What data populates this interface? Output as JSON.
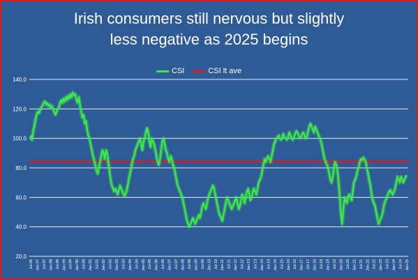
{
  "chart_data": {
    "type": "line",
    "title": "Irish consumers still nervous but slightly less negative as 2025 begins",
    "title_lines": [
      "Irish consumers still nervous but slightly",
      "less negative as 2025 begins"
    ],
    "ylim": [
      20,
      140
    ],
    "y_ticks": [
      "20.0",
      "40.0",
      "60.0",
      "80.0",
      "100.0",
      "120.0",
      "140.0"
    ],
    "x_tick_labels": [
      "Jul-96",
      "Jan-97",
      "Jul-97",
      "Jan-98",
      "Jul-98",
      "Jan-99",
      "Jul-99",
      "Jan-00",
      "Jul-00",
      "Jan-01",
      "Jul-01",
      "Jan-02",
      "Jul-02",
      "Jan-03",
      "Jul-03",
      "Jan-04",
      "Jul-04",
      "Jan-05",
      "Jul-05",
      "Jan-06",
      "Jul-06",
      "Jan-07",
      "Jul-07",
      "Jan-08",
      "Jul-08",
      "Jan-09",
      "Jul-09",
      "Jan-10",
      "Jul-10",
      "Jan-11",
      "Jul-11",
      "Jan-12",
      "Jul-12",
      "Jan-13",
      "Jul-13",
      "Jan-14",
      "Jul-14",
      "Jan-15",
      "Jul-15",
      "Jan-16",
      "Jul-16",
      "Jan-17",
      "Jul-17",
      "Jan-18",
      "Jul-18",
      "Jan-19",
      "Jul-19",
      "Jan-20",
      "Jul-20",
      "Jan-21",
      "Jul-21",
      "Jan-22",
      "Jul-22",
      "Jan-23",
      "Jul-23",
      "Jan-24",
      "Jul-24",
      "Jan-25"
    ],
    "legend": [
      "CSI",
      "CSI lt ave"
    ],
    "legend_position": "top",
    "grid": true,
    "colors": {
      "csi": "#3ee84a",
      "lt_ave": "#d81b1b",
      "background": "#2e5a96",
      "border": "#e01818",
      "grid": "#ffffff",
      "text": "#ffffff"
    },
    "series": [
      {
        "name": "CSI",
        "x_start": "Jul-96",
        "frequency": "monthly",
        "values": [
          102,
          99,
          104,
          108,
          112,
          116,
          118,
          117,
          119,
          121,
          122,
          124,
          125,
          123,
          124,
          122,
          123,
          121,
          122,
          120,
          118,
          116,
          118,
          120,
          121,
          124,
          126,
          124,
          127,
          125,
          128,
          126,
          129,
          127,
          130,
          128,
          131,
          129,
          130,
          126,
          124,
          128,
          122,
          118,
          114,
          116,
          110,
          112,
          106,
          102,
          100,
          96,
          92,
          88,
          85,
          82,
          78,
          76,
          80,
          84,
          88,
          92,
          90,
          86,
          92,
          90,
          84,
          78,
          72,
          68,
          66,
          64,
          66,
          64,
          62,
          65,
          68,
          66,
          64,
          62,
          61,
          63,
          66,
          70,
          74,
          78,
          82,
          86,
          88,
          92,
          94,
          96,
          98,
          100,
          96,
          92,
          98,
          100,
          104,
          107,
          104,
          98,
          94,
          100,
          98,
          96,
          92,
          88,
          84,
          82,
          86,
          92,
          98,
          100,
          96,
          92,
          90,
          86,
          84,
          88,
          86,
          82,
          80,
          76,
          72,
          68,
          66,
          64,
          62,
          60,
          56,
          52,
          48,
          44,
          42,
          40,
          42,
          44,
          46,
          44,
          42,
          44,
          46,
          48,
          46,
          50,
          54,
          56,
          54,
          52,
          56,
          60,
          62,
          64,
          66,
          68,
          66,
          62,
          58,
          54,
          50,
          48,
          46,
          44,
          48,
          52,
          56,
          60,
          58,
          56,
          54,
          52,
          54,
          56,
          58,
          60,
          56,
          52,
          54,
          58,
          62,
          60,
          56,
          60,
          64,
          66,
          62,
          58,
          60,
          64,
          66,
          64,
          62,
          66,
          70,
          72,
          74,
          78,
          82,
          86,
          84,
          86,
          88,
          86,
          84,
          88,
          92,
          96,
          98,
          100,
          101,
          102,
          100,
          99,
          101,
          103,
          101,
          100,
          99,
          101,
          104,
          102,
          100,
          99,
          101,
          103,
          105,
          104,
          102,
          100,
          101,
          103,
          104,
          102,
          100,
          101,
          105,
          108,
          110,
          108,
          106,
          104,
          108,
          106,
          104,
          102,
          100,
          98,
          94,
          90,
          86,
          84,
          82,
          80,
          76,
          72,
          70,
          74,
          80,
          84,
          82,
          78,
          70,
          60,
          48,
          42,
          52,
          60,
          58,
          56,
          60,
          62,
          60,
          58,
          64,
          70,
          72,
          74,
          78,
          80,
          84,
          86,
          85,
          87,
          86,
          84,
          80,
          76,
          72,
          68,
          62,
          58,
          56,
          54,
          50,
          46,
          42,
          44,
          46,
          48,
          52,
          56,
          58,
          60,
          62,
          64,
          65,
          63,
          62,
          64,
          66,
          70,
          74,
          72,
          70,
          74,
          72,
          70,
          72,
          74,
          75
        ]
      },
      {
        "name": "CSI lt ave",
        "value": 84.3
      }
    ]
  }
}
